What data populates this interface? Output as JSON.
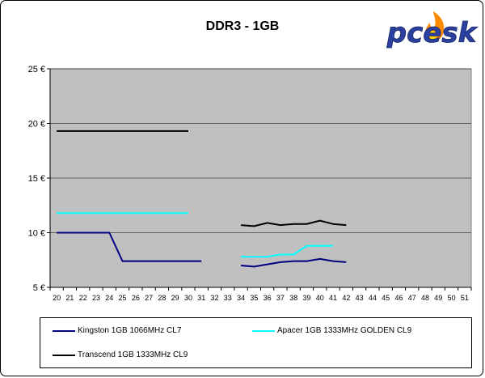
{
  "chart_data": {
    "type": "line",
    "title": "DDR3 - 1GB",
    "xlabel": "",
    "ylabel": "",
    "x": [
      20,
      21,
      22,
      23,
      24,
      25,
      26,
      27,
      28,
      29,
      30,
      31,
      32,
      33,
      34,
      35,
      36,
      37,
      38,
      39,
      40,
      41,
      42,
      43,
      44,
      45,
      46,
      47,
      48,
      49,
      50,
      51
    ],
    "ylim": [
      5,
      25
    ],
    "yticks": [
      "5 €",
      "10 €",
      "15 €",
      "20 €",
      "25 €"
    ],
    "ytick_values": [
      5,
      10,
      15,
      20,
      25
    ],
    "grid": true,
    "legend_position": "bottom",
    "background": "#c0c0c0",
    "series": [
      {
        "name": "Kingston 1GB 1066MHz CL7",
        "color": "#000080",
        "values": [
          10,
          10,
          10,
          10,
          10,
          7.4,
          7.4,
          7.4,
          7.4,
          7.4,
          7.4,
          7.4,
          null,
          null,
          7.0,
          6.9,
          7.1,
          7.3,
          7.4,
          7.4,
          7.6,
          7.4,
          7.3,
          null,
          null,
          null,
          null,
          null,
          null,
          null,
          null,
          null
        ]
      },
      {
        "name": "Apacer 1GB 1333MHz GOLDEN CL9",
        "color": "#00ffff",
        "values": [
          11.8,
          11.8,
          11.8,
          11.8,
          11.8,
          11.8,
          11.8,
          11.8,
          11.8,
          11.8,
          11.8,
          null,
          null,
          null,
          7.8,
          7.8,
          7.8,
          8.0,
          8.0,
          8.8,
          8.8,
          8.8,
          null,
          null,
          null,
          null,
          null,
          null,
          null,
          null,
          null,
          null
        ]
      },
      {
        "name": "Transcend 1GB 1333MHz CL9",
        "color": "#000000",
        "values": [
          19.3,
          19.3,
          19.3,
          19.3,
          19.3,
          19.3,
          19.3,
          19.3,
          19.3,
          19.3,
          19.3,
          null,
          null,
          null,
          10.7,
          10.6,
          10.9,
          10.7,
          10.8,
          10.8,
          11.1,
          10.8,
          10.7,
          null,
          null,
          null,
          null,
          null,
          null,
          null,
          null,
          null
        ]
      }
    ]
  },
  "logo": {
    "text": "pcesk"
  }
}
